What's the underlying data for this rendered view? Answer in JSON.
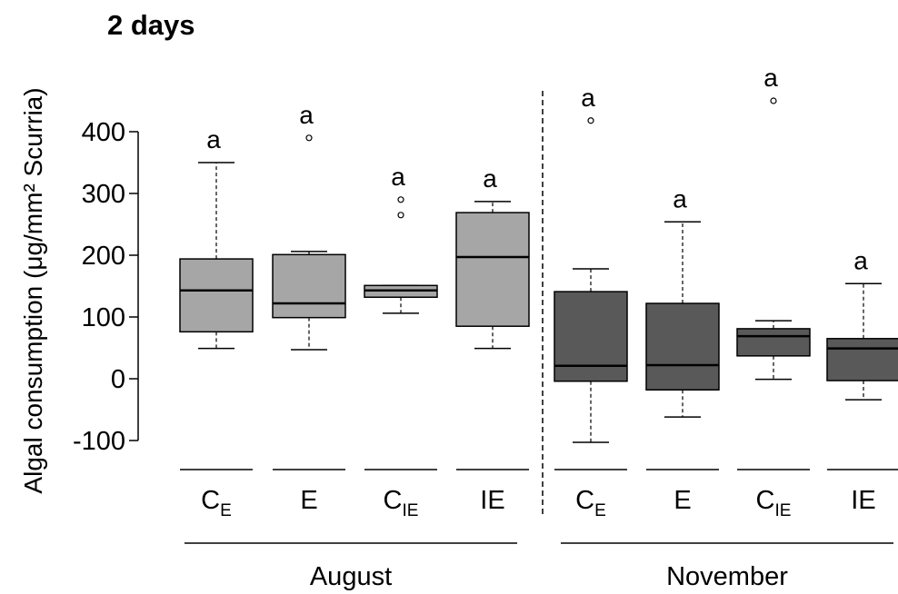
{
  "chart_data": {
    "type": "box",
    "title": "2 days",
    "y_label": "Algal consumption (μg/mm² Scurria)",
    "ylim": [
      -100,
      400
    ],
    "yticks": [
      -100,
      0,
      100,
      200,
      300,
      400
    ],
    "groups": [
      {
        "name": "August",
        "color": "#a6a6a6",
        "boxes": [
          {
            "label": "C",
            "sub": "E",
            "letter": "a",
            "whislo": 49,
            "q1": 76,
            "median": 143,
            "q3": 194,
            "whishi": 350,
            "outliers": []
          },
          {
            "label": "E",
            "letter": "a",
            "whislo": 47,
            "q1": 99,
            "median": 122,
            "q3": 201,
            "whishi": 206,
            "outliers": [
              390
            ]
          },
          {
            "label": "C",
            "sub": "IE",
            "letter": "a",
            "whislo": 106,
            "q1": 132,
            "median": 143,
            "q3": 151,
            "whishi": 151,
            "outliers": [
              290,
              265
            ]
          },
          {
            "label": "IE",
            "letter": "a",
            "whislo": 49,
            "q1": 85,
            "median": 197,
            "q3": 269,
            "whishi": 287,
            "outliers": []
          }
        ]
      },
      {
        "name": "November",
        "color": "#595959",
        "boxes": [
          {
            "label": "C",
            "sub": "E",
            "letter": "a",
            "whislo": -103,
            "q1": -4,
            "median": 21,
            "q3": 141,
            "whishi": 178,
            "outliers": [
              418
            ]
          },
          {
            "label": "E",
            "letter": "a",
            "whislo": -62,
            "q1": -18,
            "median": 22,
            "q3": 122,
            "whishi": 254,
            "outliers": []
          },
          {
            "label": "C",
            "sub": "IE",
            "letter": "a",
            "whislo": -1,
            "q1": 37,
            "median": 69,
            "q3": 81,
            "whishi": 94,
            "outliers": [
              450
            ]
          },
          {
            "label": "IE",
            "letter": "a",
            "whislo": -34,
            "q1": -3,
            "median": 49,
            "q3": 65,
            "whishi": 154,
            "outliers": []
          }
        ]
      }
    ]
  }
}
